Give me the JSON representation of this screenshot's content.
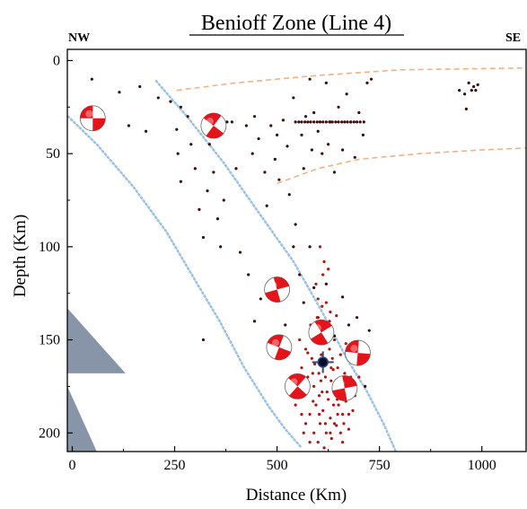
{
  "chart_data": {
    "type": "scatter",
    "title": "Benioff Zone (Line 4)",
    "left_label": "NW",
    "right_label": "SE",
    "xlabel": "Distance (Km)",
    "ylabel": "Depth (Km)",
    "xlim": [
      -12,
      1108
    ],
    "ylim": [
      -6,
      210
    ],
    "y_inverted": true,
    "xticks": [
      0,
      250,
      500,
      750,
      1000
    ],
    "yticks": [
      0,
      50,
      100,
      150,
      200
    ],
    "colors": {
      "events_dark": "#3a0e0e",
      "events_red": "#b01515",
      "slab_outline": "#9cc3e6",
      "boundary": "#f4b183",
      "triangle": "#7b8a9e",
      "mechanism": "#e4141a"
    },
    "series": [
      {
        "points": [
          [
            48,
            10
          ],
          [
            115,
            17
          ],
          [
            165,
            14
          ],
          [
            138,
            35
          ],
          [
            180,
            38
          ],
          [
            210,
            20
          ],
          [
            255,
            37
          ],
          [
            258,
            50
          ],
          [
            265,
            65
          ],
          [
            282,
            30
          ],
          [
            290,
            45
          ],
          [
            300,
            58
          ],
          [
            310,
            80
          ],
          [
            320,
            95
          ],
          [
            330,
            70
          ],
          [
            335,
            45
          ],
          [
            345,
            60
          ],
          [
            355,
            85
          ],
          [
            362,
            100
          ],
          [
            370,
            75
          ],
          [
            240,
            22
          ],
          [
            265,
            25
          ],
          [
            390,
            33
          ],
          [
            400,
            58
          ],
          [
            425,
            35
          ],
          [
            440,
            50
          ],
          [
            445,
            30
          ],
          [
            455,
            42
          ],
          [
            470,
            60
          ],
          [
            475,
            78
          ],
          [
            485,
            35
          ],
          [
            495,
            53
          ],
          [
            500,
            40
          ],
          [
            505,
            64
          ],
          [
            515,
            32
          ],
          [
            525,
            46
          ],
          [
            530,
            72
          ],
          [
            540,
            20
          ],
          [
            545,
            88
          ],
          [
            560,
            40
          ],
          [
            565,
            58
          ],
          [
            570,
            30
          ],
          [
            580,
            10
          ],
          [
            585,
            48
          ],
          [
            590,
            28
          ],
          [
            600,
            38
          ],
          [
            610,
            50
          ],
          [
            620,
            12
          ],
          [
            625,
            45
          ],
          [
            630,
            33
          ],
          [
            640,
            60
          ],
          [
            650,
            25
          ],
          [
            660,
            48
          ],
          [
            670,
            18
          ],
          [
            680,
            33
          ],
          [
            690,
            52
          ],
          [
            700,
            28
          ],
          [
            710,
            40
          ],
          [
            720,
            12
          ],
          [
            730,
            10
          ],
          [
            365,
            33
          ],
          [
            372,
            33
          ],
          [
            378,
            33
          ],
          [
            545,
            33
          ],
          [
            553,
            33
          ],
          [
            560,
            33
          ],
          [
            568,
            33
          ],
          [
            575,
            33
          ],
          [
            582,
            33
          ],
          [
            590,
            33
          ],
          [
            598,
            33
          ],
          [
            605,
            33
          ],
          [
            612,
            33
          ],
          [
            620,
            33
          ],
          [
            628,
            33
          ],
          [
            635,
            33
          ],
          [
            643,
            33
          ],
          [
            650,
            33
          ],
          [
            658,
            33
          ],
          [
            665,
            33
          ],
          [
            672,
            33
          ],
          [
            680,
            33
          ],
          [
            688,
            33
          ],
          [
            695,
            33
          ],
          [
            703,
            33
          ],
          [
            712,
            33
          ],
          [
            945,
            16
          ],
          [
            958,
            18
          ],
          [
            962,
            26
          ],
          [
            968,
            12
          ],
          [
            975,
            16
          ],
          [
            980,
            14
          ],
          [
            985,
            16
          ],
          [
            990,
            13
          ],
          [
            320,
            150
          ],
          [
            410,
            103
          ],
          [
            430,
            115
          ],
          [
            445,
            140
          ],
          [
            460,
            128
          ],
          [
            520,
            142
          ],
          [
            540,
            100
          ],
          [
            555,
            115
          ],
          [
            565,
            130
          ],
          [
            580,
            100
          ],
          [
            590,
            122
          ],
          [
            600,
            138
          ],
          [
            620,
            120
          ],
          [
            640,
            148
          ],
          [
            660,
            127
          ],
          [
            675,
            142
          ],
          [
            695,
            138
          ],
          [
            705,
            160
          ],
          [
            715,
            175
          ],
          [
            725,
            145
          ]
        ]
      },
      {
        "points": [
          [
            555,
            150
          ],
          [
            560,
            165
          ],
          [
            565,
            180
          ],
          [
            570,
            155
          ],
          [
            575,
            170
          ],
          [
            580,
            190
          ],
          [
            585,
            160
          ],
          [
            590,
            175
          ],
          [
            595,
            185
          ],
          [
            600,
            150
          ],
          [
            602,
            168
          ],
          [
            605,
            195
          ],
          [
            608,
            158
          ],
          [
            610,
            178
          ],
          [
            612,
            188
          ],
          [
            615,
            152
          ],
          [
            618,
            170
          ],
          [
            620,
            200
          ],
          [
            622,
            162
          ],
          [
            625,
            182
          ],
          [
            628,
            155
          ],
          [
            630,
            192
          ],
          [
            632,
            172
          ],
          [
            635,
            160
          ],
          [
            638,
            185
          ],
          [
            640,
            150
          ],
          [
            642,
            176
          ],
          [
            645,
            196
          ],
          [
            648,
            165
          ],
          [
            650,
            185
          ],
          [
            655,
            158
          ],
          [
            658,
            178
          ],
          [
            660,
            190
          ],
          [
            665,
            168
          ],
          [
            668,
            152
          ],
          [
            670,
            180
          ],
          [
            675,
            198
          ],
          [
            680,
            170
          ],
          [
            685,
            188
          ],
          [
            690,
            160
          ],
          [
            582,
            142
          ],
          [
            598,
            138
          ],
          [
            612,
            145
          ],
          [
            628,
            140
          ],
          [
            645,
            137
          ],
          [
            575,
            157
          ],
          [
            592,
            163
          ],
          [
            607,
            172
          ],
          [
            622,
            178
          ],
          [
            637,
            166
          ],
          [
            652,
            173
          ],
          [
            668,
            183
          ],
          [
            683,
            175
          ],
          [
            588,
            183
          ],
          [
            603,
            190
          ],
          [
            618,
            195
          ],
          [
            633,
            203
          ],
          [
            648,
            190
          ],
          [
            663,
            195
          ],
          [
            572,
            175
          ],
          [
            587,
            168
          ],
          [
            603,
            180
          ],
          [
            617,
            160
          ],
          [
            632,
            165
          ],
          [
            647,
            182
          ],
          [
            600,
            205
          ],
          [
            615,
            208
          ],
          [
            630,
            200
          ],
          [
            660,
            205
          ],
          [
            570,
            195
          ],
          [
            590,
            200
          ],
          [
            640,
            195
          ],
          [
            655,
            200
          ],
          [
            675,
            190
          ],
          [
            690,
            180
          ],
          [
            700,
            170
          ],
          [
            560,
            190
          ],
          [
            565,
            200
          ],
          [
            580,
            205
          ],
          [
            545,
            185
          ],
          [
            550,
            175
          ],
          [
            600,
            128
          ],
          [
            610,
            132
          ],
          [
            620,
            130
          ],
          [
            630,
            135
          ],
          [
            595,
            120
          ],
          [
            612,
            115
          ],
          [
            625,
            112
          ],
          [
            615,
            108
          ],
          [
            605,
            100
          ]
        ]
      }
    ],
    "mechanisms": [
      {
        "x": 50,
        "y": 31
      },
      {
        "x": 345,
        "y": 35
      },
      {
        "x": 500,
        "y": 123
      },
      {
        "x": 505,
        "y": 154
      },
      {
        "x": 608,
        "y": 146
      },
      {
        "x": 697,
        "y": 157
      },
      {
        "x": 550,
        "y": 175
      },
      {
        "x": 665,
        "y": 176
      }
    ],
    "focus_star": {
      "x": 612,
      "y": 162
    },
    "slab_top": [
      [
        -10,
        30
      ],
      [
        60,
        45
      ],
      [
        150,
        68
      ],
      [
        230,
        92
      ],
      [
        300,
        118
      ],
      [
        360,
        140
      ],
      [
        420,
        165
      ],
      [
        480,
        186
      ],
      [
        520,
        198
      ],
      [
        560,
        208
      ]
    ],
    "slab_bottom": [
      [
        205,
        11
      ],
      [
        280,
        30
      ],
      [
        370,
        55
      ],
      [
        450,
        80
      ],
      [
        540,
        108
      ],
      [
        610,
        135
      ],
      [
        670,
        160
      ],
      [
        720,
        178
      ],
      [
        760,
        195
      ],
      [
        790,
        210
      ]
    ],
    "boundary_top": [
      [
        255,
        16
      ],
      [
        400,
        12
      ],
      [
        600,
        8
      ],
      [
        800,
        5
      ],
      [
        1108,
        4
      ]
    ],
    "boundary_lower": [
      [
        500,
        66
      ],
      [
        600,
        58
      ],
      [
        700,
        53
      ],
      [
        850,
        50
      ],
      [
        1000,
        48
      ],
      [
        1108,
        47
      ]
    ],
    "triangles": [
      [
        [
          -12,
          133
        ],
        [
          130,
          168
        ],
        [
          -12,
          168
        ]
      ],
      [
        [
          -12,
          175
        ],
        [
          60,
          210
        ],
        [
          -12,
          210
        ]
      ]
    ]
  }
}
